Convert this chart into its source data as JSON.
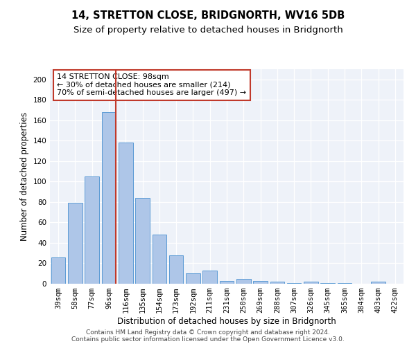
{
  "title1": "14, STRETTON CLOSE, BRIDGNORTH, WV16 5DB",
  "title2": "Size of property relative to detached houses in Bridgnorth",
  "xlabel": "Distribution of detached houses by size in Bridgnorth",
  "ylabel": "Number of detached properties",
  "categories": [
    "39sqm",
    "58sqm",
    "77sqm",
    "96sqm",
    "116sqm",
    "135sqm",
    "154sqm",
    "173sqm",
    "192sqm",
    "211sqm",
    "231sqm",
    "250sqm",
    "269sqm",
    "288sqm",
    "307sqm",
    "326sqm",
    "345sqm",
    "365sqm",
    "384sqm",
    "403sqm",
    "422sqm"
  ],
  "values": [
    26,
    79,
    105,
    168,
    138,
    84,
    48,
    28,
    10,
    13,
    3,
    5,
    3,
    2,
    1,
    2,
    1,
    1,
    0,
    2,
    0
  ],
  "bar_color": "#aec6e8",
  "bar_edge_color": "#5b9bd5",
  "highlight_bar_index": 3,
  "highlight_line_color": "#c0392b",
  "annotation_line1": "14 STRETTON CLOSE: 98sqm",
  "annotation_line2": "← 30% of detached houses are smaller (214)",
  "annotation_line3": "70% of semi-detached houses are larger (497) →",
  "annotation_box_color": "#ffffff",
  "annotation_box_edge": "#c0392b",
  "ylim": [
    0,
    210
  ],
  "yticks": [
    0,
    20,
    40,
    60,
    80,
    100,
    120,
    140,
    160,
    180,
    200
  ],
  "bg_color": "#eef2f9",
  "footer_text": "Contains HM Land Registry data © Crown copyright and database right 2024.\nContains public sector information licensed under the Open Government Licence v3.0.",
  "title1_fontsize": 10.5,
  "title2_fontsize": 9.5,
  "xlabel_fontsize": 8.5,
  "ylabel_fontsize": 8.5,
  "tick_fontsize": 7.5,
  "annotation_fontsize": 8,
  "footer_fontsize": 6.5
}
